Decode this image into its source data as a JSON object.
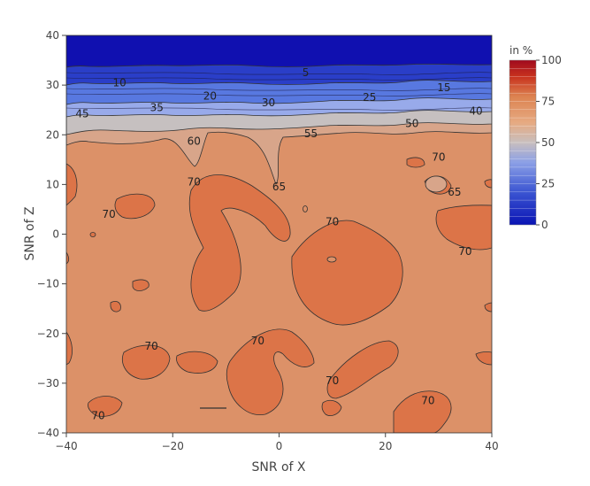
{
  "chart_data": {
    "type": "contour",
    "xlabel": "SNR of X",
    "ylabel": "SNR of Z",
    "xlim": [
      -40,
      40
    ],
    "ylim": [
      -40,
      40
    ],
    "x_ticks": [
      -40,
      -20,
      0,
      20,
      40
    ],
    "y_ticks": [
      40,
      30,
      20,
      10,
      0,
      -10,
      -20,
      -30,
      -40
    ],
    "colorbar": {
      "title": "in %",
      "range": [
        0,
        100
      ],
      "ticks": [
        0,
        25,
        50,
        75,
        100
      ],
      "colors": [
        "#0a14b4",
        "#4b69dc",
        "#8ca0e6",
        "#c8bebe",
        "#e6aa82",
        "#dc8250",
        "#c8321e",
        "#a00a1e"
      ]
    },
    "bands": [
      {
        "z_from": 0,
        "z_to": 5,
        "y_from": 40,
        "y_to": 34,
        "color": "#1010b0"
      },
      {
        "z_from": 5,
        "z_to": 20,
        "y_from": 34,
        "y_to": 29,
        "color": "#2a3ec8"
      },
      {
        "z_from": 20,
        "z_to": 35,
        "y_from": 29,
        "y_to": 26,
        "color": "#5878e0"
      },
      {
        "z_from": 35,
        "z_to": 45,
        "y_from": 26,
        "y_to": 24,
        "color": "#98aaea"
      },
      {
        "z_from": 45,
        "z_to": 55,
        "y_from": 24,
        "y_to": 21,
        "color": "#c6c0c0"
      },
      {
        "z_from": 55,
        "z_to": 65,
        "y_from": 21,
        "y_to": 18,
        "color": "#d8a58a"
      },
      {
        "z_from": 65,
        "z_to": 70,
        "y_from": 18,
        "y_to": -40,
        "color": "#dc9168"
      },
      {
        "z_from": 70,
        "z_to": 75,
        "regions": "islands",
        "color": "#dc7448"
      }
    ],
    "contour_labels": [
      {
        "text": "5",
        "x": 5,
        "y": 32.5
      },
      {
        "text": "10",
        "x": -30,
        "y": 30.5
      },
      {
        "text": "15",
        "x": 31,
        "y": 29.5
      },
      {
        "text": "20",
        "x": -13,
        "y": 27.8
      },
      {
        "text": "25",
        "x": 17,
        "y": 27.5
      },
      {
        "text": "30",
        "x": -2,
        "y": 26.5
      },
      {
        "text": "35",
        "x": -23,
        "y": 25.5
      },
      {
        "text": "40",
        "x": 37,
        "y": 24.8
      },
      {
        "text": "45",
        "x": -37,
        "y": 24.2
      },
      {
        "text": "50",
        "x": 25,
        "y": 22.3
      },
      {
        "text": "55",
        "x": 6,
        "y": 20.2
      },
      {
        "text": "60",
        "x": -16,
        "y": 18.7
      },
      {
        "text": "65",
        "x": 0,
        "y": 9.5
      },
      {
        "text": "65",
        "x": 33,
        "y": 8.5
      },
      {
        "text": "70",
        "x": -16,
        "y": 10.5
      },
      {
        "text": "70",
        "x": 30,
        "y": 15.5
      },
      {
        "text": "70",
        "x": -32,
        "y": 4
      },
      {
        "text": "70",
        "x": 10,
        "y": 2.5
      },
      {
        "text": "70",
        "x": 35,
        "y": -3.5
      },
      {
        "text": "70",
        "x": -24,
        "y": -22.5
      },
      {
        "text": "70",
        "x": -4,
        "y": -21.5
      },
      {
        "text": "70",
        "x": 10,
        "y": -29.5
      },
      {
        "text": "70",
        "x": 28,
        "y": -33.5
      },
      {
        "text": "70",
        "x": -34,
        "y": -36.5
      }
    ]
  }
}
